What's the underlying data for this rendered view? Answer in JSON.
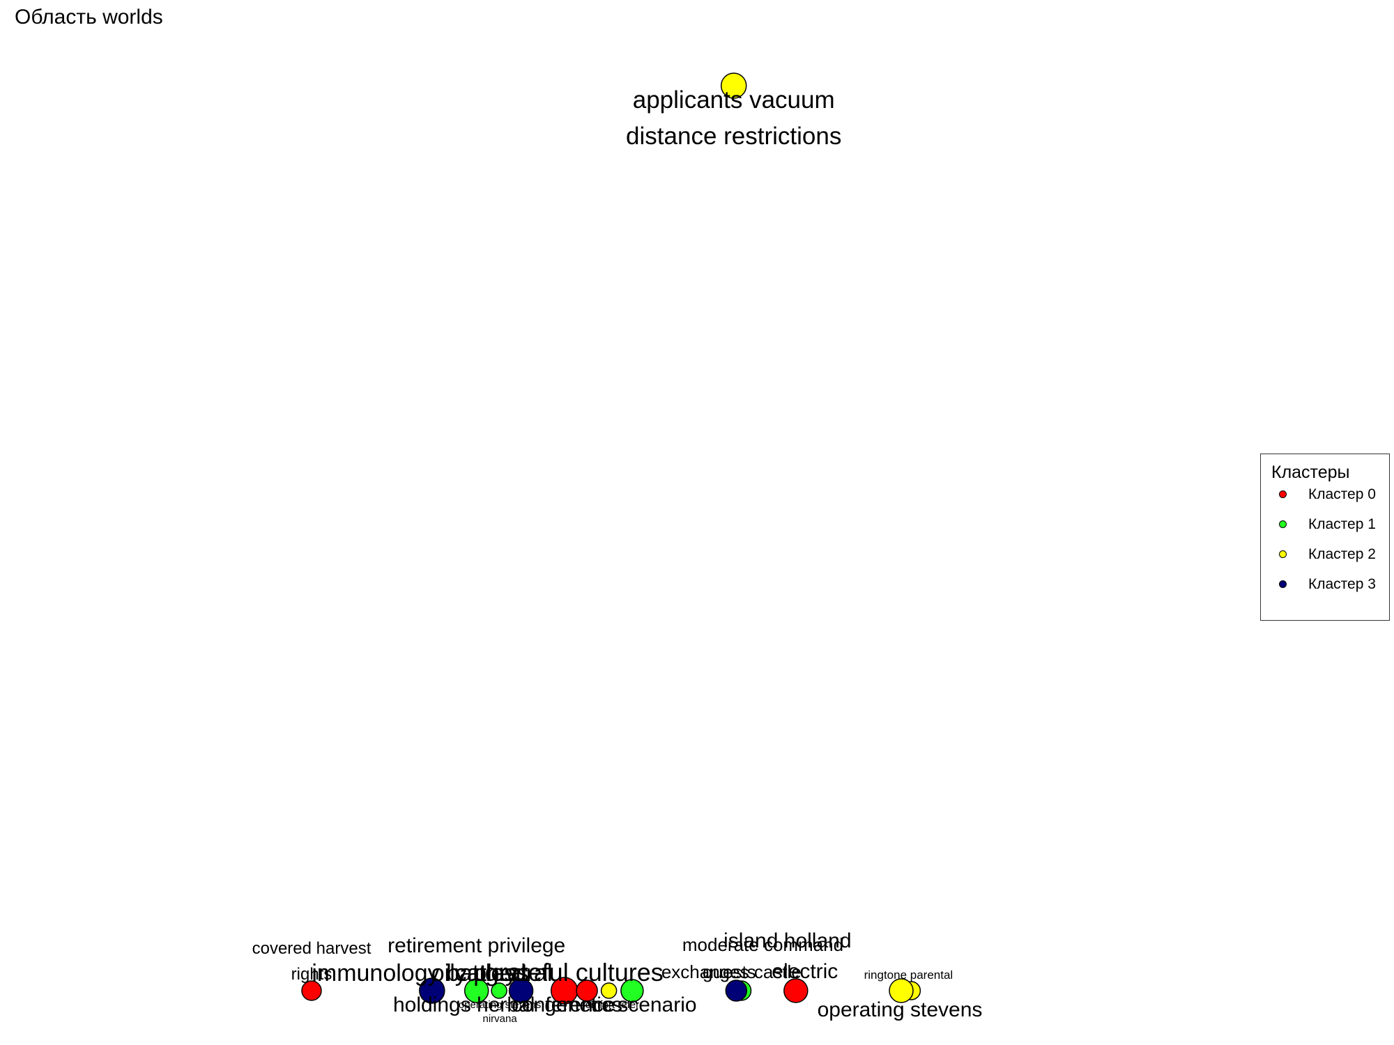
{
  "chart_data": {
    "type": "scatter",
    "title": "Область worlds",
    "xlabel": "",
    "ylabel": "",
    "grid": false,
    "legend": {
      "title": "Кластеры",
      "placement": "right",
      "entries": [
        {
          "name": "Кластер 0",
          "color": "#ff0000"
        },
        {
          "name": "Кластер 1",
          "color": "#22ff22"
        },
        {
          "name": "Кластер 2",
          "color": "#ffff00"
        },
        {
          "name": "Кластер 3",
          "color": "#000077"
        }
      ]
    },
    "points": [
      {
        "label": "applicants vacuum distance restrictions",
        "cluster": 2,
        "x": 0.673,
        "y": 0.0,
        "size": 36
      },
      {
        "label": "covered harvest rights",
        "cluster": 0,
        "x": 0.0,
        "y": 1.0,
        "size": 28
      },
      {
        "label": "immunology battles",
        "cluster": 3,
        "x": 0.192,
        "y": 1.0,
        "size": 36
      },
      {
        "label": "retirement privilege holdings herbal",
        "cluster": 1,
        "x": 0.263,
        "y": 1.0,
        "size": 34
      },
      {
        "label": "operating stevens nirvana",
        "cluster": 1,
        "x": 0.299,
        "y": 1.0,
        "size": 22
      },
      {
        "label": "cathedral",
        "cluster": 3,
        "x": 0.334,
        "y": 1.0,
        "size": 34
      },
      {
        "label": "grateful cultures",
        "cluster": 0,
        "x": 0.403,
        "y": 1.0,
        "size": 38
      },
      {
        "label": "genetics",
        "cluster": 0,
        "x": 0.439,
        "y": 1.0,
        "size": 30
      },
      {
        "label": "comfort refer",
        "cluster": 2,
        "x": 0.474,
        "y": 1.0,
        "size": 22
      },
      {
        "label": "scenario",
        "cluster": 1,
        "x": 0.511,
        "y": 1.0,
        "size": 32
      },
      {
        "label": "moderate command",
        "cluster": 1,
        "x": 0.685,
        "y": 1.0,
        "size": 28
      },
      {
        "label": "exchanges castle",
        "cluster": 3,
        "x": 0.677,
        "y": 1.0,
        "size": 30
      },
      {
        "label": "island holland electric",
        "cluster": 0,
        "x": 0.772,
        "y": 1.0,
        "size": 34
      },
      {
        "label": "ringtone parental",
        "cluster": 2,
        "x": 0.956,
        "y": 1.0,
        "size": 26
      },
      {
        "label": "operating stevens",
        "cluster": 2,
        "x": 0.94,
        "y": 1.0,
        "size": 34
      }
    ],
    "text_labels": [
      {
        "text": "applicants vacuum",
        "point": 0,
        "size": 35
      },
      {
        "text": "distance restrictions",
        "point": 0,
        "size": 35
      },
      {
        "text": "covered harvest",
        "point": 1,
        "size": 24
      },
      {
        "text": "rights",
        "point": 1,
        "size": 24
      },
      {
        "text": "retirement privilege",
        "point": 3,
        "size": 30
      },
      {
        "text": "immunology battles",
        "point": 2,
        "size": 34
      },
      {
        "text": "oily plays",
        "point": 3,
        "size": 34
      },
      {
        "text": "cathedral",
        "point": 5,
        "size": 34
      },
      {
        "text": "grateful cultures",
        "point": 6,
        "size": 36
      },
      {
        "text": "operating stevens",
        "point": 4,
        "size": 15
      },
      {
        "text": "comfort refer",
        "point": 8,
        "size": 15
      },
      {
        "text": "holdings herbal",
        "point": 3,
        "size": 30
      },
      {
        "text": "genetics",
        "point": 7,
        "size": 30
      },
      {
        "text": "conference",
        "point": 7,
        "size": 30
      },
      {
        "text": "scenario",
        "point": 9,
        "size": 30
      },
      {
        "text": "nirvana",
        "point": 4,
        "size": 15
      },
      {
        "text": "moderate command",
        "point": 10,
        "size": 26
      },
      {
        "text": "island holland",
        "point": 12,
        "size": 30
      },
      {
        "text": "exchanges castle",
        "point": 11,
        "size": 26
      },
      {
        "text": "guests",
        "point": 11,
        "size": 26
      },
      {
        "text": "electric",
        "point": 12,
        "size": 30
      },
      {
        "text": "ringtone parental",
        "point": 13,
        "size": 17
      },
      {
        "text": "operating stevens",
        "point": 14,
        "size": 30
      }
    ]
  }
}
